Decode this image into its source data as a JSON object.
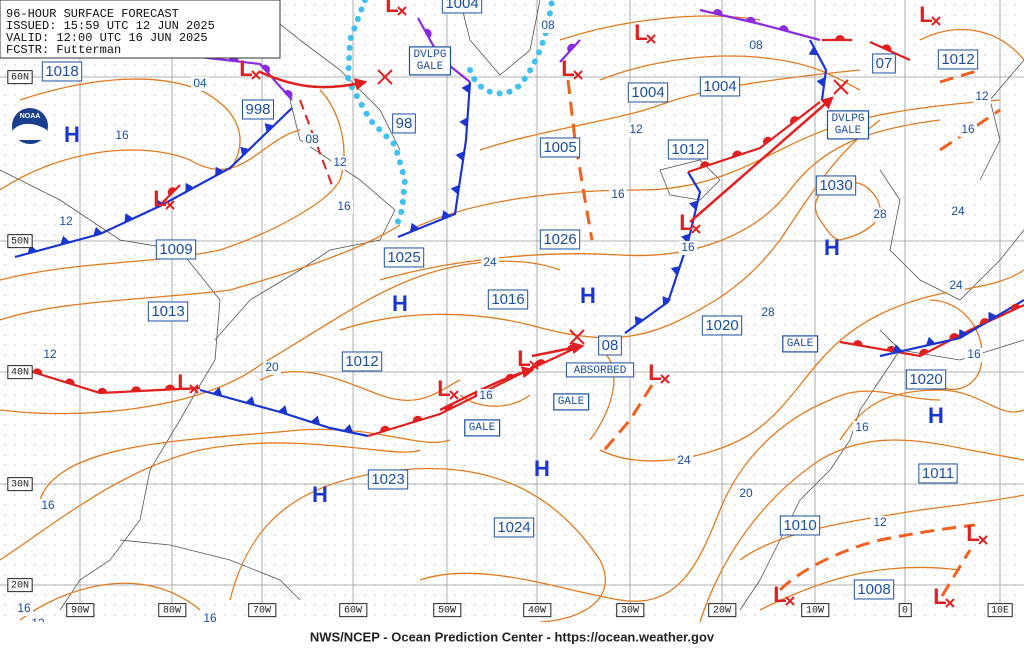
{
  "header": [
    "96-HOUR SURFACE FORECAST",
    "ISSUED: 15:59 UTC 12 JUN 2025",
    "VALID: 12:00 UTC 16 JUN 2025",
    "FCSTR: Futterman"
  ],
  "logo": "NOAA",
  "footer": "NWS/NCEP - Ocean Prediction Center - https://ocean.weather.gov",
  "lat_labels": [
    "60N",
    "50N",
    "40N",
    "30N",
    "20N"
  ],
  "lon_labels": [
    "90W",
    "80W",
    "70W",
    "60W",
    "50W",
    "40W",
    "30W",
    "20W",
    "10W",
    "0",
    "10E"
  ],
  "pressure_labels": [
    "1018",
    "998",
    "98",
    "1004",
    "1004",
    "1004",
    "1005",
    "1012",
    "1030",
    "1026",
    "1009",
    "1025",
    "1016",
    "1013",
    "1020",
    "1012",
    "08",
    "1020",
    "1023",
    "1024",
    "1011",
    "1010",
    "1008",
    "07",
    "1012"
  ],
  "isobar_labels": [
    "04",
    "16",
    "08",
    "12",
    "16",
    "12",
    "08",
    "08",
    "12",
    "16",
    "16",
    "24",
    "28",
    "24",
    "28",
    "24",
    "12",
    "16",
    "16",
    "20",
    "16",
    "12",
    "24",
    "20",
    "16",
    "12",
    "16",
    "16",
    "12",
    "16"
  ],
  "highs": [
    "H",
    "H",
    "H",
    "H",
    "H",
    "H",
    "H"
  ],
  "lows": [
    "L",
    "L",
    "L",
    "L",
    "L",
    "L",
    "L",
    "L",
    "L",
    "L",
    "L",
    "L",
    "L",
    "L"
  ],
  "warnings": [
    [
      "DVLPG",
      "GALE"
    ],
    [
      "DVLPG",
      "GALE"
    ],
    [
      "GALE"
    ],
    [
      "GALE"
    ],
    [
      "GALE"
    ]
  ],
  "annotations": [
    "ABSORBED"
  ]
}
